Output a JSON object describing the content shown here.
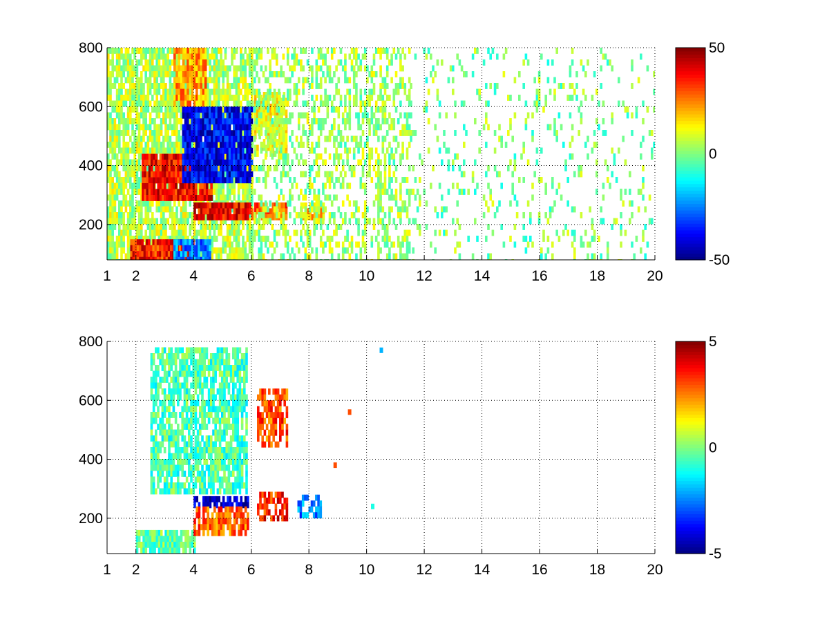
{
  "chart_data": [
    {
      "type": "heatmap",
      "x_ticks": [
        1,
        2,
        4,
        6,
        8,
        10,
        12,
        14,
        16,
        18,
        20
      ],
      "y_ticks": [
        200,
        400,
        600,
        800
      ],
      "xlim": [
        1,
        20
      ],
      "ylim": [
        80,
        800
      ],
      "grid": true,
      "colorbar": {
        "colormap": "jet",
        "range": [
          -50,
          50
        ],
        "ticks": [
          50,
          0,
          -50
        ]
      },
      "regions": [
        {
          "x": [
            1,
            6
          ],
          "y": [
            80,
            800
          ],
          "value": 5,
          "density": 0.8
        },
        {
          "x": [
            2.2,
            4.6
          ],
          "y": [
            290,
            440
          ],
          "value": 38,
          "density": 0.95
        },
        {
          "x": [
            3.6,
            6
          ],
          "y": [
            360,
            600
          ],
          "value": -38,
          "density": 0.95
        },
        {
          "x": [
            3.3,
            4.4
          ],
          "y": [
            620,
            800
          ],
          "value": 22,
          "density": 0.85
        },
        {
          "x": [
            1.8,
            4
          ],
          "y": [
            90,
            150
          ],
          "value": 35,
          "density": 0.95
        },
        {
          "x": [
            3.3,
            4.6
          ],
          "y": [
            90,
            150
          ],
          "value": -25,
          "density": 0.9
        },
        {
          "x": [
            4,
            6
          ],
          "y": [
            225,
            275
          ],
          "value": 38,
          "density": 0.95
        },
        {
          "x": [
            6.1,
            7.2
          ],
          "y": [
            225,
            275
          ],
          "value": 30,
          "density": 0.9
        },
        {
          "x": [
            7.7,
            8.5
          ],
          "y": [
            230,
            275
          ],
          "value": 20,
          "density": 0.9
        },
        {
          "x": [
            6.1,
            7.2
          ],
          "y": [
            450,
            650
          ],
          "value": 12,
          "density": 0.8
        },
        {
          "x": [
            6,
            11.5
          ],
          "y": [
            80,
            800
          ],
          "value": 3,
          "density": 0.4
        },
        {
          "x": [
            11.5,
            20
          ],
          "y": [
            80,
            800
          ],
          "value": 0,
          "density": 0.12
        }
      ]
    },
    {
      "type": "heatmap",
      "x_ticks": [
        1,
        2,
        4,
        6,
        8,
        10,
        12,
        14,
        16,
        18,
        20
      ],
      "y_ticks": [
        200,
        400,
        600,
        800
      ],
      "xlim": [
        1,
        20
      ],
      "ylim": [
        80,
        800
      ],
      "grid": true,
      "colorbar": {
        "colormap": "jet",
        "range": [
          -5,
          5
        ],
        "ticks": [
          5,
          0,
          -5
        ]
      },
      "regions": [
        {
          "x": [
            2.5,
            5.8
          ],
          "y": [
            300,
            780
          ],
          "value": -0.5,
          "density": 0.75
        },
        {
          "x": [
            2,
            4
          ],
          "y": [
            90,
            160
          ],
          "value": -0.3,
          "density": 0.85
        },
        {
          "x": [
            4,
            5.9
          ],
          "y": [
            240,
            275
          ],
          "value": -4.2,
          "density": 0.75
        },
        {
          "x": [
            4,
            5.9
          ],
          "y": [
            160,
            240
          ],
          "value": 2.8,
          "density": 0.75
        },
        {
          "x": [
            6.2,
            7.2
          ],
          "y": [
            450,
            640
          ],
          "value": 3,
          "density": 0.7
        },
        {
          "x": [
            6.2,
            7.2
          ],
          "y": [
            210,
            290
          ],
          "value": 3.5,
          "density": 0.7
        },
        {
          "x": [
            7.6,
            8.4
          ],
          "y": [
            220,
            280
          ],
          "value": -2.5,
          "density": 0.6
        }
      ],
      "scatter_points": [
        {
          "x": 10.5,
          "y": 770,
          "value": -2
        },
        {
          "x": 8.9,
          "y": 380,
          "value": 3
        },
        {
          "x": 9.4,
          "y": 560,
          "value": 3
        },
        {
          "x": 10.2,
          "y": 240,
          "value": -1
        }
      ]
    }
  ]
}
